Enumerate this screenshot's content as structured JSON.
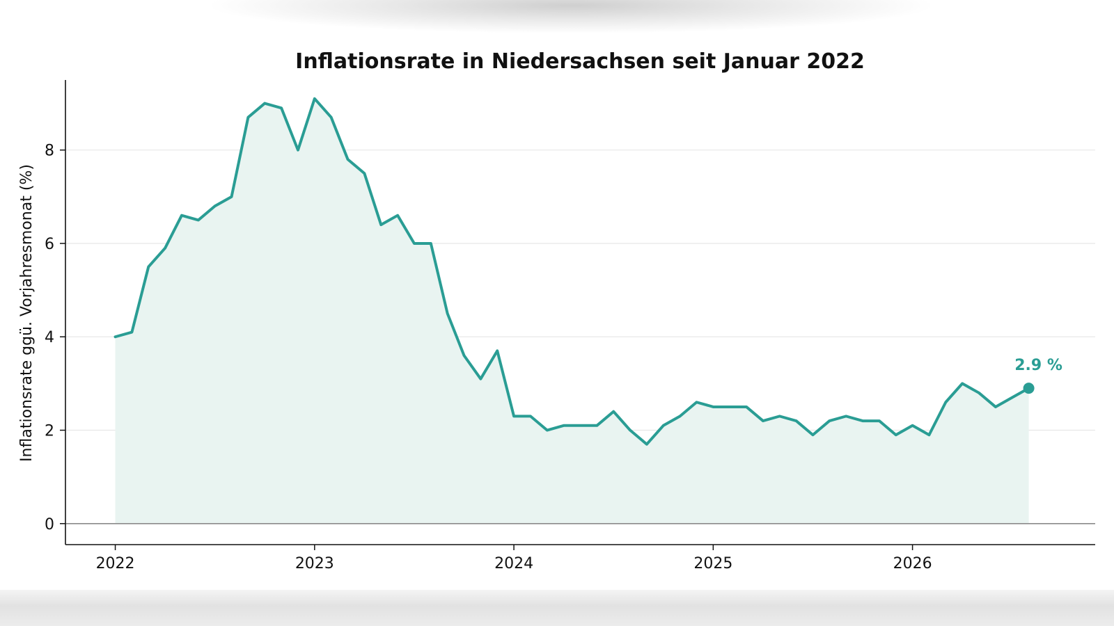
{
  "chart_data": {
    "type": "area",
    "title": "Inflationsrate in Niedersachsen seit Januar 2022",
    "xlabel": "",
    "ylabel": "Inflationsrate ggü. Vorjahresmonat (%)",
    "x_ticks": [
      "2022",
      "2023",
      "2024",
      "2025",
      "2026"
    ],
    "y_ticks": [
      "0",
      "2",
      "4",
      "6",
      "8"
    ],
    "xlim": [
      "2021-10",
      "2026-12"
    ],
    "ylim": [
      -0.45,
      9.5
    ],
    "grid": "horizontal",
    "line_color": "#2a9d94",
    "fill_color": "#e9f4f1",
    "series": [
      {
        "x": [
          "2022-01",
          "2022-02",
          "2022-03",
          "2022-04",
          "2022-05",
          "2022-06",
          "2022-07",
          "2022-08",
          "2022-09",
          "2022-10",
          "2022-11",
          "2022-12",
          "2023-01",
          "2023-02",
          "2023-03",
          "2023-04",
          "2023-05",
          "2023-06",
          "2023-07",
          "2023-08",
          "2023-09",
          "2023-10",
          "2023-11",
          "2023-12",
          "2024-01",
          "2024-02",
          "2024-03",
          "2024-04",
          "2024-05",
          "2024-06",
          "2024-07",
          "2024-08",
          "2024-09",
          "2024-10",
          "2024-11",
          "2024-12",
          "2025-01",
          "2025-02",
          "2025-03",
          "2025-04",
          "2025-05",
          "2025-06",
          "2025-07",
          "2025-08",
          "2025-09",
          "2025-10",
          "2025-11",
          "2025-12",
          "2026-01",
          "2026-02",
          "2026-03",
          "2026-04",
          "2026-05",
          "2026-06",
          "2026-07",
          "2026-08"
        ],
        "values": [
          4.0,
          4.1,
          5.5,
          5.9,
          6.6,
          6.5,
          6.8,
          7.0,
          8.7,
          9.0,
          8.9,
          8.0,
          9.1,
          8.7,
          7.8,
          7.5,
          6.4,
          6.6,
          6.0,
          6.0,
          4.5,
          3.6,
          3.1,
          3.7,
          2.3,
          2.3,
          2.0,
          2.1,
          2.1,
          2.1,
          2.4,
          2.0,
          1.7,
          2.1,
          2.3,
          2.6,
          2.5,
          2.5,
          2.5,
          2.2,
          2.3,
          2.2,
          1.9,
          2.2,
          2.3,
          2.2,
          2.2,
          1.9,
          2.1,
          1.9,
          2.6,
          3.0,
          2.8,
          2.5,
          2.7,
          2.9
        ]
      }
    ],
    "annotations": [
      {
        "text": "2.9 %",
        "x": "2026-08",
        "y": 2.9
      }
    ]
  }
}
